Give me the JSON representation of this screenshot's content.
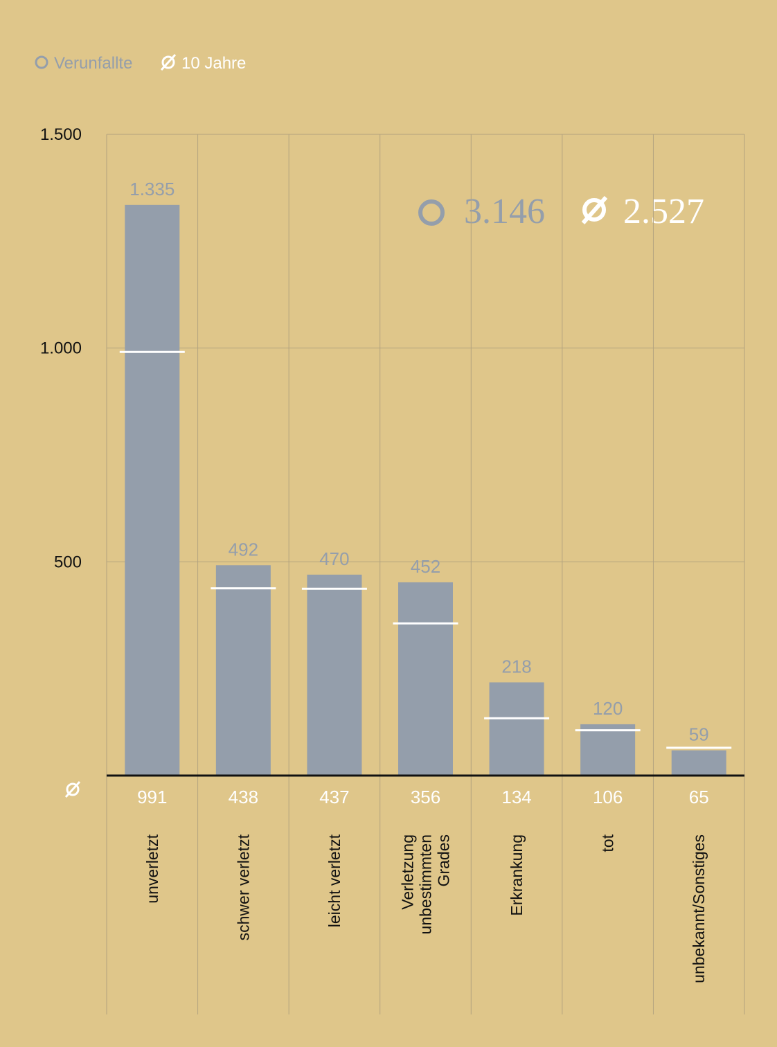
{
  "chart_data": {
    "type": "bar",
    "categories": [
      "unverletzt",
      "schwer verletzt",
      "leicht verletzt",
      "Verletzung\nunbestimmten\nGrades",
      "Erkrankung",
      "tot",
      "unbekannt/Sonstiges"
    ],
    "series": [
      {
        "name": "Verunfallte",
        "color": "#949eab",
        "values": [
          1335,
          492,
          470,
          452,
          218,
          120,
          59
        ],
        "value_labels": [
          "1.335",
          "492",
          "470",
          "452",
          "218",
          "120",
          "59"
        ]
      },
      {
        "name": "10 Jahre",
        "color": "#ffffff",
        "values": [
          991,
          438,
          437,
          356,
          134,
          106,
          65
        ]
      }
    ],
    "ylim": [
      0,
      1500
    ],
    "yticks": [
      500,
      {
        "value": 1000,
        "label": "1.000"
      },
      {
        "value": 1500,
        "label": "1.500"
      }
    ],
    "grid": true,
    "total_label": "3.146",
    "average_total_label": "2.527"
  }
}
